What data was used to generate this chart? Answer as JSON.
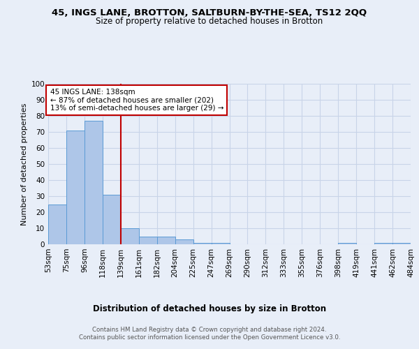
{
  "title_line1": "45, INGS LANE, BROTTON, SALTBURN-BY-THE-SEA, TS12 2QQ",
  "title_line2": "Size of property relative to detached houses in Brotton",
  "xlabel": "Distribution of detached houses by size in Brotton",
  "ylabel": "Number of detached properties",
  "bin_labels": [
    "53sqm",
    "75sqm",
    "96sqm",
    "118sqm",
    "139sqm",
    "161sqm",
    "182sqm",
    "204sqm",
    "225sqm",
    "247sqm",
    "269sqm",
    "290sqm",
    "312sqm",
    "333sqm",
    "355sqm",
    "376sqm",
    "398sqm",
    "419sqm",
    "441sqm",
    "462sqm",
    "484sqm"
  ],
  "bar_values": [
    25,
    71,
    77,
    31,
    10,
    5,
    5,
    3,
    1,
    1,
    0,
    0,
    0,
    0,
    0,
    0,
    1,
    0,
    1,
    1
  ],
  "bar_color": "#aec6e8",
  "bar_edge_color": "#5b9bd5",
  "red_line_index": 4,
  "red_line_color": "#c00000",
  "annotation_text": "45 INGS LANE: 138sqm\n← 87% of detached houses are smaller (202)\n13% of semi-detached houses are larger (29) →",
  "annotation_box_color": "#ffffff",
  "annotation_box_edge": "#c00000",
  "ylim": [
    0,
    100
  ],
  "yticks": [
    0,
    10,
    20,
    30,
    40,
    50,
    60,
    70,
    80,
    90,
    100
  ],
  "grid_color": "#c8d4e8",
  "footer_line1": "Contains HM Land Registry data © Crown copyright and database right 2024.",
  "footer_line2": "Contains public sector information licensed under the Open Government Licence v3.0.",
  "background_color": "#e8eef8",
  "plot_background": "#e8eef8"
}
